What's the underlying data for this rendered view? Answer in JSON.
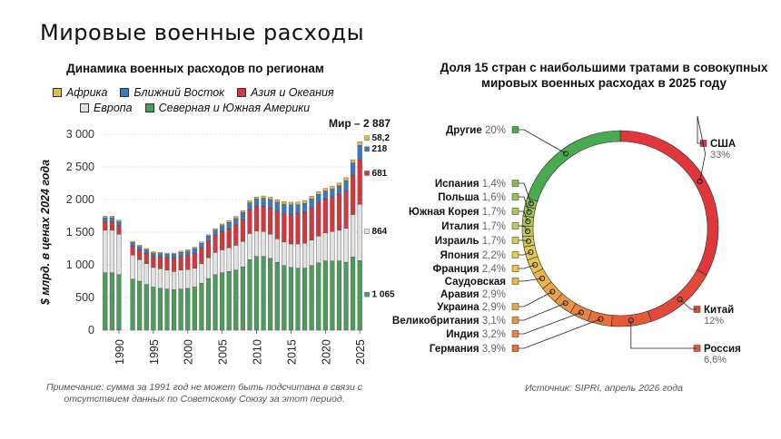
{
  "header": {
    "title": "Мировые военные расходы"
  },
  "note": "Примечание: сумма за 1991 год не может быть подсчитана в связи с отсутствием данных по Советскому Союзу за этот период.",
  "source": "Источник: SIPRI, апрель 2026 года",
  "chart_data": [
    {
      "type": "bar",
      "stacked": true,
      "title": "Динамика военных расходов по регионам",
      "ylabel": "$ млрд. в ценах 2024 года",
      "xlabel": "",
      "ylim": [
        0,
        3000
      ],
      "yticks": [
        0,
        500,
        1000,
        1500,
        2000,
        2500,
        3000
      ],
      "ytick_labels": [
        "0",
        "500",
        "1 000",
        "1 500",
        "2 000",
        "2 500",
        "3 000"
      ],
      "xticks": [
        1990,
        1995,
        2000,
        2005,
        2010,
        2015,
        2020,
        2025
      ],
      "grid": true,
      "legend_position": "top",
      "categories": [
        1988,
        1989,
        1990,
        1991,
        1992,
        1993,
        1994,
        1995,
        1996,
        1997,
        1998,
        1999,
        2000,
        2001,
        2002,
        2003,
        2004,
        2005,
        2006,
        2007,
        2008,
        2009,
        2010,
        2011,
        2012,
        2013,
        2014,
        2015,
        2016,
        2017,
        2018,
        2019,
        2020,
        2021,
        2022,
        2023,
        2024,
        2025
      ],
      "series": [
        {
          "name": "Северная и Южная Америки",
          "color": "#4a9d5b",
          "values": [
            880,
            880,
            850,
            null,
            780,
            750,
            700,
            660,
            640,
            630,
            620,
            630,
            640,
            660,
            720,
            790,
            850,
            880,
            900,
            920,
            970,
            1080,
            1130,
            1130,
            1100,
            1040,
            990,
            960,
            950,
            950,
            990,
            1030,
            1060,
            1060,
            1060,
            1040,
            1120,
            1065
          ]
        },
        {
          "name": "Европа",
          "color": "#e2e2e2",
          "values": [
            650,
            650,
            620,
            null,
            370,
            330,
            320,
            300,
            300,
            290,
            280,
            290,
            290,
            290,
            300,
            320,
            340,
            350,
            360,
            380,
            390,
            400,
            390,
            380,
            370,
            360,
            360,
            360,
            370,
            380,
            390,
            410,
            430,
            450,
            470,
            520,
            650,
            864
          ]
        },
        {
          "name": "Азия и Океания",
          "color": "#d8363c",
          "values": [
            130,
            130,
            130,
            null,
            140,
            150,
            160,
            170,
            180,
            190,
            200,
            210,
            220,
            230,
            240,
            250,
            260,
            280,
            290,
            310,
            330,
            360,
            380,
            390,
            400,
            420,
            430,
            450,
            460,
            470,
            490,
            510,
            520,
            530,
            550,
            570,
            600,
            681
          ]
        },
        {
          "name": "Ближний Восток",
          "color": "#3a78c0",
          "values": [
            60,
            60,
            60,
            null,
            50,
            50,
            50,
            50,
            50,
            50,
            60,
            60,
            60,
            70,
            70,
            80,
            80,
            90,
            100,
            100,
            110,
            110,
            110,
            120,
            130,
            140,
            150,
            150,
            140,
            140,
            140,
            130,
            120,
            120,
            130,
            160,
            190,
            218
          ]
        },
        {
          "name": "Африка",
          "color": "#e3b94a",
          "values": [
            25,
            25,
            25,
            null,
            20,
            20,
            20,
            20,
            20,
            20,
            20,
            20,
            20,
            20,
            20,
            20,
            25,
            25,
            25,
            30,
            30,
            30,
            30,
            35,
            35,
            38,
            40,
            40,
            40,
            40,
            40,
            40,
            40,
            42,
            42,
            45,
            50,
            58.2
          ]
        }
      ],
      "end_labels": {
        "total": "Мир – 2 887",
        "africa": "58,2",
        "middle_east": "218",
        "asia": "681",
        "europe": "864",
        "americas": "1 065"
      }
    },
    {
      "type": "pie",
      "donut": true,
      "title": "Доля 15 стран с наибольшими тратами в совокупных мировых военных расходах в 2025 году",
      "slices": [
        {
          "label": "США",
          "value": 33,
          "value_text": "33%",
          "color": "#e0373d"
        },
        {
          "label": "Китай",
          "value": 12,
          "value_text": "12%",
          "color": "#e3493a"
        },
        {
          "label": "Россия",
          "value": 6.6,
          "value_text": "6,6%",
          "color": "#e65a3c"
        },
        {
          "label": "Германия",
          "value": 3.9,
          "value_text": "3,9%",
          "color": "#e7703f"
        },
        {
          "label": "Индия",
          "value": 3.2,
          "value_text": "3,2%",
          "color": "#e98444"
        },
        {
          "label": "Великобритания",
          "value": 3.1,
          "value_text": "3,1%",
          "color": "#ea9447"
        },
        {
          "label": "Украина",
          "value": 2.9,
          "value_text": "2,9%",
          "color": "#eba44b"
        },
        {
          "label": "Саудовская Аравия",
          "value": 2.9,
          "value_text": "2,9%",
          "color": "#ebb44f"
        },
        {
          "label": "Франция",
          "value": 2.4,
          "value_text": "2,4%",
          "color": "#e7c355"
        },
        {
          "label": "Япония",
          "value": 2.2,
          "value_text": "2,2%",
          "color": "#dfc95a"
        },
        {
          "label": "Израиль",
          "value": 1.7,
          "value_text": "1,7%",
          "color": "#d2c95c"
        },
        {
          "label": "Италия",
          "value": 1.7,
          "value_text": "1,7%",
          "color": "#c2c75c"
        },
        {
          "label": "Южная Корея",
          "value": 1.7,
          "value_text": "1,7%",
          "color": "#afc35b"
        },
        {
          "label": "Польша",
          "value": 1.6,
          "value_text": "1,6%",
          "color": "#9cbf59"
        },
        {
          "label": "Испания",
          "value": 1.4,
          "value_text": "1,4%",
          "color": "#86ba56"
        },
        {
          "label": "Другие",
          "value": 20,
          "value_text": "20%",
          "color": "#4aaa52"
        }
      ]
    }
  ]
}
